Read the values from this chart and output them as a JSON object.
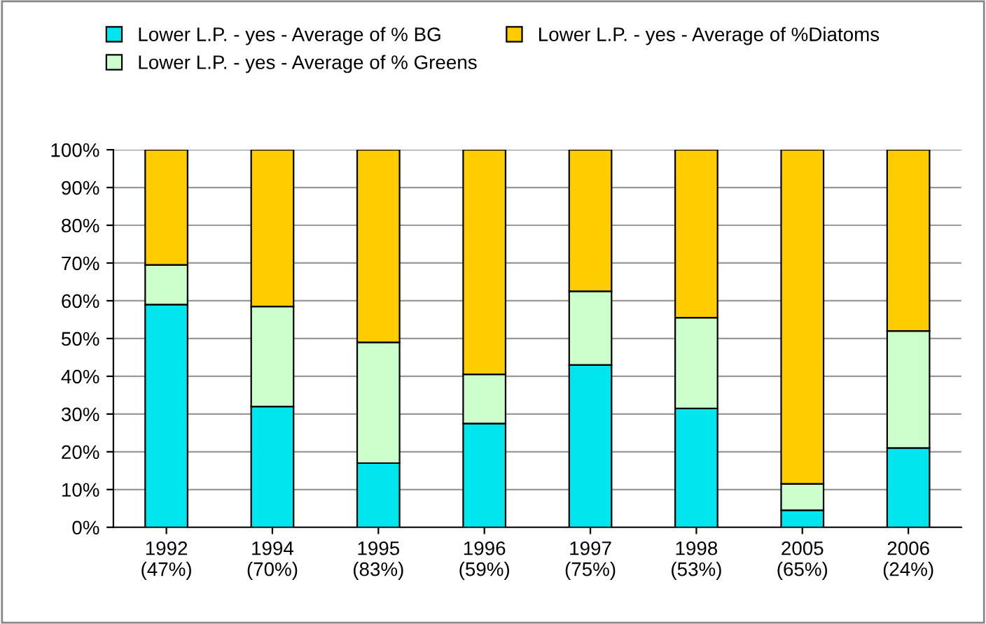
{
  "chart_data": {
    "type": "bar",
    "stacked": true,
    "categories": [
      "1992\n(47%)",
      "1994\n(70%)",
      "1995\n(83%)",
      "1996\n(59%)",
      "1997\n(75%)",
      "1998\n(53%)",
      "2005\n(65%)",
      "2006\n(24%)"
    ],
    "series": [
      {
        "name": "Lower L.P. - yes - Average of % BG",
        "color": "#00e5ee",
        "values": [
          59,
          32,
          17,
          27.5,
          43,
          31.5,
          4.5,
          21
        ]
      },
      {
        "name": "Lower L.P. - yes - Average of % Greens",
        "color": "#ccffcc",
        "values": [
          10.5,
          26.5,
          32,
          13,
          19.5,
          24,
          7,
          31
        ]
      },
      {
        "name": "Lower L.P. - yes - Average of %Diatoms",
        "color": "#ffcc00",
        "values": [
          30.5,
          41.5,
          51,
          59.5,
          37.5,
          44.5,
          88.5,
          48
        ]
      }
    ],
    "ylim": [
      0,
      100
    ],
    "yticks": [
      {
        "value": 0,
        "label": "0%"
      },
      {
        "value": 10,
        "label": "10%"
      },
      {
        "value": 20,
        "label": "20%"
      },
      {
        "value": 30,
        "label": "30%"
      },
      {
        "value": 40,
        "label": "40%"
      },
      {
        "value": 50,
        "label": "50%"
      },
      {
        "value": 60,
        "label": "60%"
      },
      {
        "value": 70,
        "label": "70%"
      },
      {
        "value": 80,
        "label": "80%"
      },
      {
        "value": 90,
        "label": "90%"
      },
      {
        "value": 100,
        "label": "100%"
      }
    ],
    "grid": "y",
    "legend": "top"
  }
}
